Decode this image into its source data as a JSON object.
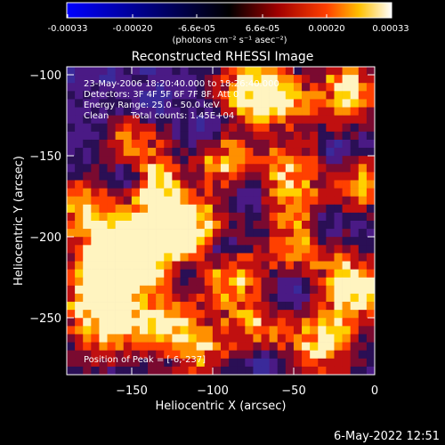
{
  "colorbar": {
    "tick_labels": [
      "-0.00033",
      "-0.00020",
      "-6.6e-05",
      "6.6e-05",
      "0.00020",
      "0.00033"
    ],
    "unit_label": "(photons cm⁻² s⁻¹ asec⁻²)"
  },
  "title": "Reconstructed RHESSI Image",
  "annotations": {
    "time_range": "23-May-2006 18:20:40.000 to 18:26:40.000",
    "detectors": "Detectors: 3F 4F 5F 6F 7F 8F, Att 0",
    "energy_range": "Energy Range: 25.0 - 50.0 keV",
    "clean_label": "Clean",
    "total_counts": "Total counts: 1.45E+04",
    "peak_position": "Position of Peak = [-6,-237]"
  },
  "axes": {
    "x_label": "Heliocentric X (arcsec)",
    "y_label": "Heliocentric Y (arcsec)",
    "x_ticks": [
      "−150",
      "−100",
      "−50",
      "0"
    ],
    "y_ticks": [
      "−100",
      "−150",
      "−200",
      "−250"
    ],
    "x_range": [
      -190,
      0
    ],
    "y_range": [
      -285,
      -95
    ]
  },
  "footer_date": "6-May-2022 12:51"
}
